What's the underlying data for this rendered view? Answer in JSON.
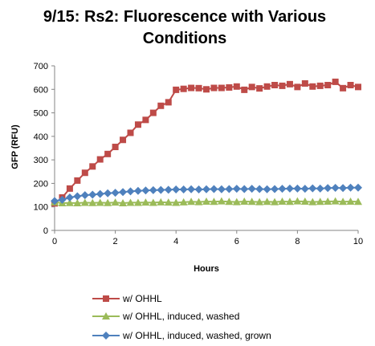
{
  "chart_data": {
    "type": "line",
    "title_lines": [
      "9/15: Rs2: Fluorescence with Various",
      "Conditions"
    ],
    "xlabel": "Hours",
    "ylabel": "GFP (RFU)",
    "xlim": [
      0,
      10
    ],
    "ylim": [
      0,
      700
    ],
    "xticks": [
      0,
      2,
      4,
      6,
      8,
      10
    ],
    "yticks": [
      0,
      100,
      200,
      300,
      400,
      500,
      600,
      700
    ],
    "grid": false,
    "legend_position": "bottom",
    "x": [
      0,
      0.25,
      0.5,
      0.75,
      1,
      1.25,
      1.5,
      1.75,
      2,
      2.25,
      2.5,
      2.75,
      3,
      3.25,
      3.5,
      3.75,
      4,
      4.25,
      4.5,
      4.75,
      5,
      5.25,
      5.5,
      5.75,
      6,
      6.25,
      6.5,
      6.75,
      7,
      7.25,
      7.5,
      7.75,
      8,
      8.25,
      8.5,
      8.75,
      9,
      9.25,
      9.5,
      9.75,
      10
    ],
    "series": [
      {
        "name": "w/ OHHL",
        "color": "#be4b48",
        "marker": "square",
        "values": [
          115,
          140,
          178,
          212,
          245,
          272,
          302,
          325,
          355,
          385,
          415,
          450,
          470,
          500,
          530,
          545,
          598,
          602,
          606,
          605,
          600,
          606,
          606,
          608,
          612,
          598,
          610,
          604,
          612,
          618,
          615,
          622,
          610,
          625,
          612,
          615,
          618,
          632,
          605,
          618,
          610
        ]
      },
      {
        "name": "w/ OHHL, induced, washed",
        "color": "#9bbb59",
        "marker": "triangle",
        "values": [
          120,
          116,
          117,
          116,
          118,
          117,
          118,
          117,
          119,
          116,
          118,
          118,
          119,
          118,
          120,
          119,
          118,
          120,
          122,
          121,
          123,
          122,
          124,
          122,
          121,
          123,
          122,
          121,
          122,
          121,
          123,
          122,
          124,
          123,
          121,
          122,
          123,
          124,
          122,
          123,
          122
        ]
      },
      {
        "name": "w/ OHHL, induced, washed, grown",
        "color": "#4f81bd",
        "marker": "diamond",
        "values": [
          125,
          130,
          140,
          145,
          150,
          152,
          155,
          158,
          160,
          163,
          166,
          168,
          170,
          171,
          172,
          173,
          174,
          174,
          175,
          174,
          175,
          176,
          175,
          176,
          177,
          176,
          177,
          176,
          175,
          176,
          177,
          178,
          178,
          177,
          179,
          178,
          180,
          181,
          180,
          182,
          182
        ]
      }
    ]
  }
}
